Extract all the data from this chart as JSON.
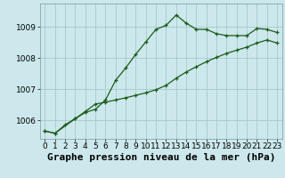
{
  "xlabel": "Graphe pression niveau de la mer (hPa)",
  "background_color": "#cce8ec",
  "grid_color": "#a8c8cc",
  "line_color": "#1a5c1a",
  "ylim": [
    1005.4,
    1009.75
  ],
  "xlim": [
    -0.5,
    23.5
  ],
  "yticks": [
    1006,
    1007,
    1008,
    1009
  ],
  "xticks": [
    0,
    1,
    2,
    3,
    4,
    5,
    6,
    7,
    8,
    9,
    10,
    11,
    12,
    13,
    14,
    15,
    16,
    17,
    18,
    19,
    20,
    21,
    22,
    23
  ],
  "series1_x": [
    0,
    1,
    2,
    3,
    4,
    5,
    6,
    7,
    8,
    9,
    10,
    11,
    12,
    13,
    14,
    15,
    16,
    17,
    18,
    19,
    20,
    21,
    22,
    23
  ],
  "series1_y": [
    1005.65,
    1005.58,
    1005.85,
    1006.05,
    1006.25,
    1006.35,
    1006.65,
    1007.28,
    1007.68,
    1008.12,
    1008.52,
    1008.92,
    1009.05,
    1009.38,
    1009.12,
    1008.92,
    1008.92,
    1008.78,
    1008.72,
    1008.72,
    1008.72,
    1008.95,
    1008.92,
    1008.82
  ],
  "series2_x": [
    0,
    1,
    3,
    4,
    5,
    6,
    7,
    8,
    9,
    10,
    11,
    12,
    13,
    14,
    15,
    16,
    17,
    18,
    19,
    20,
    21,
    22,
    23
  ],
  "series2_y": [
    1005.65,
    1005.58,
    1006.05,
    1006.28,
    1006.52,
    1006.58,
    1006.65,
    1006.72,
    1006.8,
    1006.88,
    1006.98,
    1007.12,
    1007.35,
    1007.55,
    1007.72,
    1007.88,
    1008.02,
    1008.15,
    1008.25,
    1008.35,
    1008.48,
    1008.58,
    1008.48
  ],
  "xlabel_fontsize": 8,
  "tick_fontsize": 6.5,
  "marker_size": 3.5
}
